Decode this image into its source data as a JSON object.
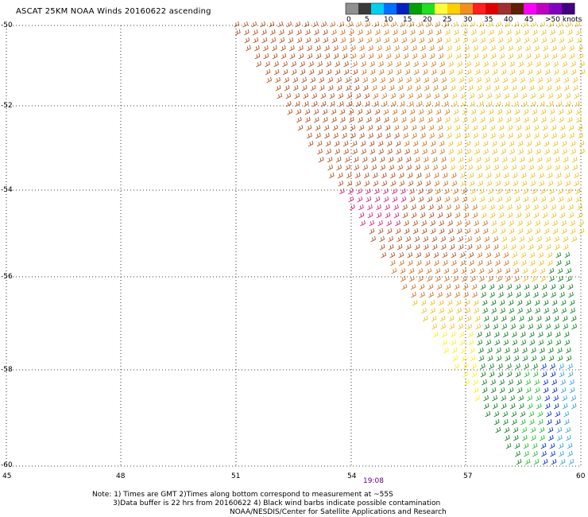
{
  "title": "ASCAT 25KM NOAA Winds 20160622 ascending",
  "legend": {
    "unit": "knots",
    "labels": [
      "0",
      "5",
      "10",
      "15",
      "20",
      "25",
      "30",
      "35",
      "40",
      "45",
      ">50 knots"
    ],
    "colors": [
      "#909090",
      "#3a3a3a",
      "#00d0f0",
      "#0070ff",
      "#0020c0",
      "#00a000",
      "#20e020",
      "#ffff40",
      "#ffd000",
      "#f09020",
      "#ff2020",
      "#e00000",
      "#a03030",
      "#602000",
      "#ff00ff",
      "#c000c0",
      "#8000c0",
      "#400080"
    ]
  },
  "axes": {
    "longitudes": [
      "45",
      "48",
      "51",
      "54",
      "57",
      "60"
    ],
    "latitudes": [
      "-50",
      "-52",
      "-54",
      "-56",
      "-58",
      "-60"
    ]
  },
  "pass_time": "19:08",
  "notes": {
    "line1": "Note: 1) Times are GMT 2)Times along bottom correspond to measurement at ~55S",
    "line2": "3)Data buffer is 22 hrs from 20160622 4) Black wind barbs indicate possible contamination",
    "credit": "NOAA/NESDIS/Center for Satellite Applications and Research"
  }
}
